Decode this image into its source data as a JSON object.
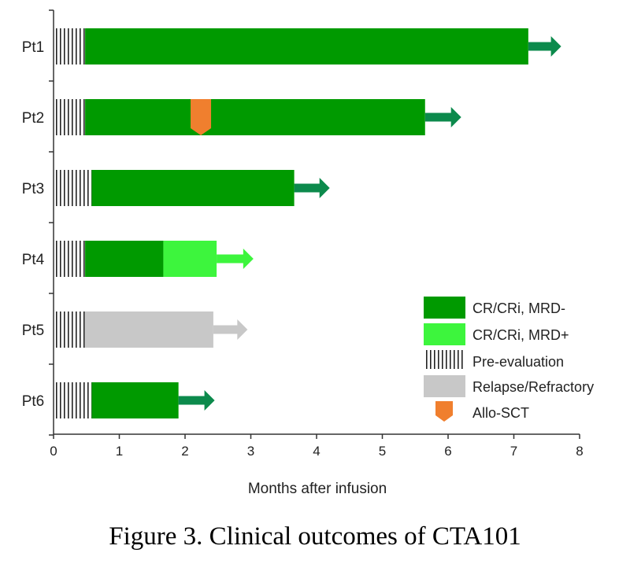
{
  "chart_data": {
    "type": "swimmer",
    "title": "",
    "xlabel": "Months after infusion",
    "ylabel": "",
    "xlim": [
      0,
      8
    ],
    "xticks": [
      0,
      1,
      2,
      3,
      4,
      5,
      6,
      7,
      8
    ],
    "tick_labels": [
      "0",
      "1",
      "2",
      "3",
      "4",
      "5",
      "6",
      "7",
      "8"
    ],
    "colors": {
      "mrd_neg": "#009A00",
      "mrd_neg_arrow": "#0C8A4C",
      "mrd_pos": "#3DF53D",
      "relapse": "#C8C8C8",
      "allo_sct": "#F07F2E",
      "pre_eval": "#222222"
    },
    "patients": [
      {
        "label": "Pt1",
        "pre_eval_end": 0.48,
        "segments": [
          {
            "status": "CR/CRi, MRD-",
            "start": 0.48,
            "end": 7.22
          }
        ],
        "ongoing_to": 7.72,
        "ongoing_status": "CR/CRi, MRD-"
      },
      {
        "label": "Pt2",
        "pre_eval_end": 0.48,
        "segments": [
          {
            "status": "CR/CRi, MRD-",
            "start": 0.48,
            "end": 5.65
          }
        ],
        "ongoing_to": 6.2,
        "ongoing_status": "CR/CRi, MRD-",
        "allo_sct_at": 2.24
      },
      {
        "label": "Pt3",
        "pre_eval_end": 0.58,
        "segments": [
          {
            "status": "CR/CRi, MRD-",
            "start": 0.58,
            "end": 3.66
          }
        ],
        "ongoing_to": 4.2,
        "ongoing_status": "CR/CRi, MRD-"
      },
      {
        "label": "Pt4",
        "pre_eval_end": 0.48,
        "segments": [
          {
            "status": "CR/CRi, MRD-",
            "start": 0.48,
            "end": 1.67
          },
          {
            "status": "CR/CRi, MRD+",
            "start": 1.67,
            "end": 2.48
          }
        ],
        "ongoing_to": 3.04,
        "ongoing_status": "CR/CRi, MRD+"
      },
      {
        "label": "Pt5",
        "pre_eval_end": 0.48,
        "segments": [
          {
            "status": "Relapse/Refractory",
            "start": 0.48,
            "end": 2.43
          }
        ],
        "ongoing_to": 2.95,
        "ongoing_status": "Relapse/Refractory"
      },
      {
        "label": "Pt6",
        "pre_eval_end": 0.58,
        "segments": [
          {
            "status": "CR/CRi, MRD-",
            "start": 0.58,
            "end": 1.9
          }
        ],
        "ongoing_to": 2.45,
        "ongoing_status": "CR/CRi, MRD-"
      }
    ],
    "legend": [
      {
        "key": "mrd_neg",
        "label": "CR/CRi, MRD-"
      },
      {
        "key": "mrd_pos",
        "label": "CR/CRi, MRD+"
      },
      {
        "key": "pre_eval",
        "label": "Pre-evaluation"
      },
      {
        "key": "relapse",
        "label": "Relapse/Refractory"
      },
      {
        "key": "allo_sct",
        "label": "Allo-SCT"
      }
    ],
    "legend_position": "bottom-right"
  },
  "caption": "Figure 3. Clinical outcomes of CTA101"
}
